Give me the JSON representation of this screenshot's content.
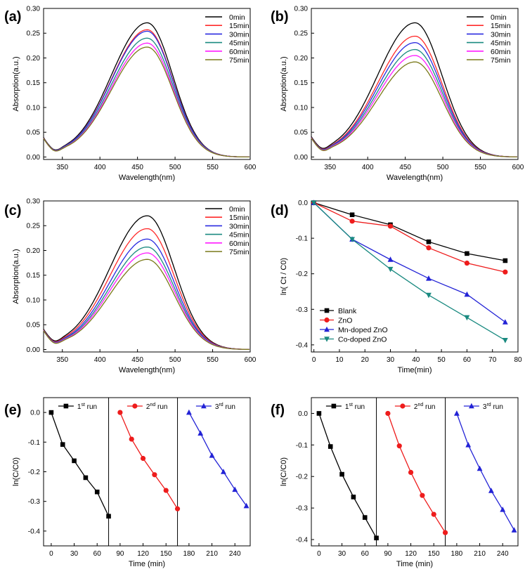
{
  "chart_data": [
    {
      "panel": "(a)",
      "type": "line",
      "xlabel": "Wavelength(nm)",
      "ylabel": "Absorption(a.u.)",
      "xlim": [
        325,
        600
      ],
      "ylim": [
        -0.005,
        0.3
      ],
      "xticks": [
        350,
        400,
        450,
        500,
        550,
        600
      ],
      "yticks": [
        0.0,
        0.05,
        0.1,
        0.15,
        0.2,
        0.25,
        0.3
      ],
      "ytick_labels": [
        "0.00",
        "0.05",
        "0.10",
        "0.15",
        "0.20",
        "0.25",
        "0.30"
      ],
      "legend_position": "top-right",
      "spectrum": {
        "peak": 463,
        "sigma_left": 48,
        "sigma_right": 34,
        "dip_amp": 0.008,
        "dip_center": 340,
        "dip_width": 10
      },
      "series": [
        {
          "name": "0min",
          "color": "#000000",
          "peak": 0.271
        },
        {
          "name": "15min",
          "color": "#ff2a2a",
          "peak": 0.257
        },
        {
          "name": "30min",
          "color": "#2a2ae0",
          "peak": 0.254
        },
        {
          "name": "45min",
          "color": "#1a8a80",
          "peak": 0.24
        },
        {
          "name": "60min",
          "color": "#ff1aff",
          "peak": 0.23
        },
        {
          "name": "75min",
          "color": "#7a7a1a",
          "peak": 0.222
        }
      ]
    },
    {
      "panel": "(b)",
      "type": "line",
      "xlabel": "Wavelength(nm)",
      "ylabel": "Absorption(a.u.)",
      "xlim": [
        325,
        600
      ],
      "ylim": [
        -0.005,
        0.3
      ],
      "xticks": [
        350,
        400,
        450,
        500,
        550,
        600
      ],
      "yticks": [
        0.0,
        0.05,
        0.1,
        0.15,
        0.2,
        0.25,
        0.3
      ],
      "ytick_labels": [
        "0.00",
        "0.05",
        "0.10",
        "0.15",
        "0.20",
        "0.25",
        "0.30"
      ],
      "legend_position": "top-right",
      "spectrum": {
        "peak": 463,
        "sigma_left": 50,
        "sigma_right": 36,
        "dip_amp": 0.008,
        "dip_center": 340,
        "dip_width": 10
      },
      "series": [
        {
          "name": "0min",
          "color": "#000000",
          "peak": 0.271
        },
        {
          "name": "15min",
          "color": "#ff2a2a",
          "peak": 0.244
        },
        {
          "name": "30min",
          "color": "#2a2ae0",
          "peak": 0.231
        },
        {
          "name": "45min",
          "color": "#1a8a80",
          "peak": 0.217
        },
        {
          "name": "60min",
          "color": "#ff1aff",
          "peak": 0.205
        },
        {
          "name": "75min",
          "color": "#7a7a1a",
          "peak": 0.192
        }
      ]
    },
    {
      "panel": "(c)",
      "type": "line",
      "xlabel": "Wavelength(nm)",
      "ylabel": "Absorption(a.u.)",
      "xlim": [
        325,
        600
      ],
      "ylim": [
        -0.005,
        0.3
      ],
      "xticks": [
        350,
        400,
        450,
        500,
        550,
        600
      ],
      "yticks": [
        0.0,
        0.05,
        0.1,
        0.15,
        0.2,
        0.25,
        0.3
      ],
      "ytick_labels": [
        "0.00",
        "0.05",
        "0.10",
        "0.15",
        "0.20",
        "0.25",
        "0.30"
      ],
      "legend_position": "top-right",
      "spectrum": {
        "peak": 463,
        "sigma_left": 50,
        "sigma_right": 36,
        "dip_amp": 0.008,
        "dip_center": 340,
        "dip_width": 10
      },
      "series": [
        {
          "name": "0min",
          "color": "#000000",
          "peak": 0.27
        },
        {
          "name": "15min",
          "color": "#ff2a2a",
          "peak": 0.244
        },
        {
          "name": "30min",
          "color": "#2a2ae0",
          "peak": 0.223
        },
        {
          "name": "45min",
          "color": "#1a8a80",
          "peak": 0.207
        },
        {
          "name": "60min",
          "color": "#ff1aff",
          "peak": 0.195
        },
        {
          "name": "75min",
          "color": "#7a7a1a",
          "peak": 0.182
        }
      ]
    },
    {
      "panel": "(d)",
      "type": "line",
      "xlabel": "Time(min)",
      "ylabel": "ln( Ct / C0)",
      "xlim": [
        -1,
        80
      ],
      "ylim": [
        -0.42,
        0.005
      ],
      "xticks": [
        0,
        10,
        20,
        30,
        40,
        50,
        60,
        70,
        80
      ],
      "yticks": [
        0.0,
        -0.1,
        -0.2,
        -0.3,
        -0.4
      ],
      "ytick_labels": [
        "0.0",
        "-0.1",
        "-0.2",
        "-0.3",
        "-0.4"
      ],
      "legend_position": "bottom-left",
      "x": [
        0,
        15,
        30,
        45,
        60,
        75
      ],
      "series": [
        {
          "name": "Blank",
          "color": "#000000",
          "marker": "square",
          "values": [
            0,
            -0.034,
            -0.062,
            -0.11,
            -0.143,
            -0.163
          ]
        },
        {
          "name": "ZnO",
          "color": "#ee1c1c",
          "marker": "circle",
          "values": [
            0,
            -0.052,
            -0.066,
            -0.127,
            -0.17,
            -0.195
          ]
        },
        {
          "name": "Mn-doped ZnO",
          "color": "#2323d6",
          "marker": "triangle-up",
          "values": [
            0,
            -0.103,
            -0.16,
            -0.213,
            -0.258,
            -0.336
          ]
        },
        {
          "name": "Co-doped ZnO",
          "color": "#1a8a80",
          "marker": "triangle-down",
          "values": [
            0,
            -0.103,
            -0.187,
            -0.26,
            -0.323,
            -0.387
          ]
        }
      ]
    },
    {
      "panel": "(e)",
      "type": "line",
      "xlabel": "Time (min)",
      "ylabel": "ln(C/C0)",
      "xlim": [
        -10,
        260
      ],
      "ylim": [
        -0.45,
        0.05
      ],
      "xticks": [
        0,
        30,
        60,
        90,
        120,
        150,
        180,
        210,
        240
      ],
      "yticks": [
        0.0,
        -0.1,
        -0.2,
        -0.3,
        -0.4
      ],
      "ytick_labels": [
        "0.0",
        "-0.1",
        "-0.2",
        "-0.3",
        "-0.4"
      ],
      "dividers": [
        75,
        165
      ],
      "series": [
        {
          "label_base": "1",
          "label_sup": "st",
          "label_rest": " run",
          "color": "#000000",
          "marker": "square",
          "x": [
            0,
            15,
            30,
            45,
            60,
            75
          ],
          "values": [
            0,
            -0.108,
            -0.163,
            -0.22,
            -0.268,
            -0.35
          ]
        },
        {
          "label_base": "2",
          "label_sup": "nd",
          "label_rest": " run",
          "color": "#ee1c1c",
          "marker": "circle",
          "x": [
            90,
            105,
            120,
            135,
            150,
            165
          ],
          "values": [
            0,
            -0.09,
            -0.155,
            -0.21,
            -0.263,
            -0.325
          ]
        },
        {
          "label_base": "3",
          "label_sup": "rd",
          "label_rest": " run",
          "color": "#2323d6",
          "marker": "triangle-up",
          "x": [
            180,
            195,
            210,
            225,
            240,
            255
          ],
          "values": [
            0,
            -0.07,
            -0.145,
            -0.2,
            -0.26,
            -0.315
          ]
        }
      ]
    },
    {
      "panel": "(f)",
      "type": "line",
      "xlabel": "Time (min)",
      "ylabel": "ln(C/C0)",
      "xlim": [
        -10,
        260
      ],
      "ylim": [
        -0.42,
        0.05
      ],
      "xticks": [
        0,
        30,
        60,
        90,
        120,
        150,
        180,
        210,
        240
      ],
      "yticks": [
        0.0,
        -0.1,
        -0.2,
        -0.3,
        -0.4
      ],
      "ytick_labels": [
        "0.0",
        "-0.1",
        "-0.2",
        "-0.3",
        "-0.4"
      ],
      "dividers": [
        75,
        165
      ],
      "series": [
        {
          "label_base": "1",
          "label_sup": "st",
          "label_rest": " run",
          "color": "#000000",
          "marker": "square",
          "x": [
            0,
            15,
            30,
            45,
            60,
            75
          ],
          "values": [
            0,
            -0.105,
            -0.193,
            -0.265,
            -0.33,
            -0.395
          ]
        },
        {
          "label_base": "2",
          "label_sup": "nd",
          "label_rest": " run",
          "color": "#ee1c1c",
          "marker": "circle",
          "x": [
            90,
            105,
            120,
            135,
            150,
            165
          ],
          "values": [
            0,
            -0.103,
            -0.187,
            -0.26,
            -0.32,
            -0.378
          ]
        },
        {
          "label_base": "3",
          "label_sup": "rd",
          "label_rest": " run",
          "color": "#2323d6",
          "marker": "triangle-up",
          "x": [
            180,
            195,
            210,
            225,
            240,
            255
          ],
          "values": [
            0,
            -0.1,
            -0.175,
            -0.245,
            -0.305,
            -0.37
          ]
        }
      ]
    }
  ]
}
